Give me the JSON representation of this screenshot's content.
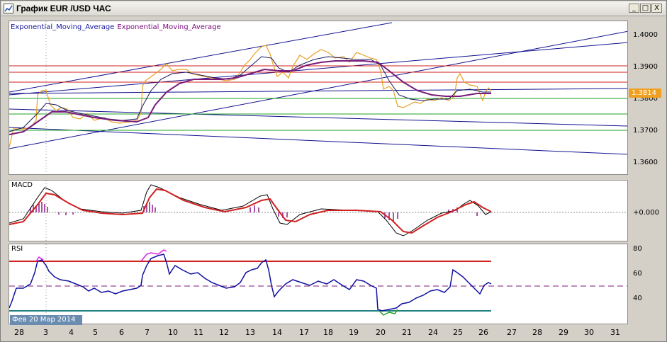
{
  "window": {
    "title": "График EUR /USD  ЧАС",
    "buttons": {
      "minimize": "_",
      "maximize": "□",
      "close": "X"
    }
  },
  "price_pane": {
    "indicator_labels": [
      "Exponential_Moving_Average",
      "Exponential_Moving_Average"
    ],
    "y_ticks": [
      "1.4000",
      "1.3900",
      "1.3800",
      "1.3700",
      "1.3600"
    ],
    "current_price": "1.3814",
    "colors": {
      "price": "#e8a020",
      "ema_fast": "#1a1a60",
      "ema_slow": "#7a1a7a",
      "trend": "#101090",
      "resistance": "#d02020",
      "support": "#20a020"
    }
  },
  "macd_pane": {
    "label": "MACD",
    "y_ticks": [
      "+0.000"
    ],
    "colors": {
      "signal": "#d02020",
      "macd": "#000000",
      "histogram": "#8a1a8a"
    }
  },
  "rsi_pane": {
    "label": "RSI",
    "y_ticks": [
      "80",
      "60",
      "40"
    ],
    "colors": {
      "rsi": "#1010a0",
      "overbought": "#e020e0",
      "oversold": "#20a020"
    }
  },
  "date_tooltip": "Фев 20  Мар 2014",
  "x_axis": {
    "labels": [
      "28",
      "3",
      "4",
      "5",
      "6",
      "7",
      "10",
      "11",
      "12",
      "13",
      "14",
      "17",
      "18",
      "19",
      "20",
      "21",
      "24",
      "25",
      "26",
      "27",
      "28",
      "29",
      "30",
      "31"
    ]
  }
}
